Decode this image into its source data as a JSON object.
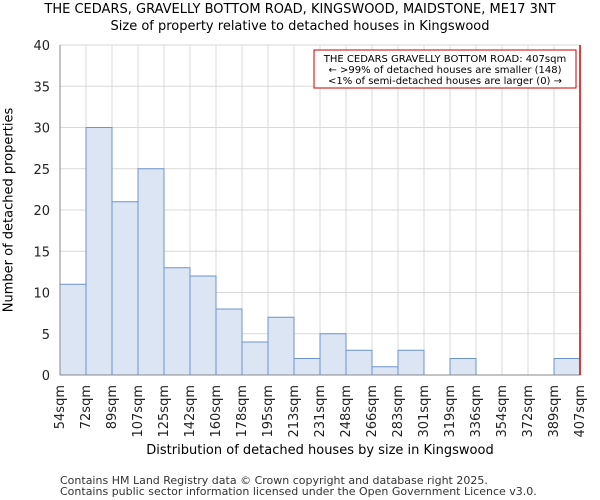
{
  "colors": {
    "bar_fill": "#dbe5f4",
    "bar_stroke": "#6e94cc",
    "grid": "#d9d9d9",
    "marker": "#cc0000"
  },
  "chart_data": {
    "type": "bar",
    "title": "THE CEDARS, GRAVELLY BOTTOM ROAD, KINGSWOOD, MAIDSTONE, ME17 3NT",
    "subtitle": "Size of property relative to detached houses in Kingswood",
    "xlabel": "Distribution of detached houses by size in Kingswood",
    "ylabel": "Number of detached properties",
    "ylim": [
      0,
      40
    ],
    "yticks": [
      0,
      5,
      10,
      15,
      20,
      25,
      30,
      35,
      40
    ],
    "grid": true,
    "bin_edges": [
      "54sqm",
      "72sqm",
      "89sqm",
      "107sqm",
      "125sqm",
      "142sqm",
      "160sqm",
      "178sqm",
      "195sqm",
      "213sqm",
      "231sqm",
      "248sqm",
      "266sqm",
      "283sqm",
      "301sqm",
      "319sqm",
      "336sqm",
      "354sqm",
      "372sqm",
      "389sqm",
      "407sqm"
    ],
    "values": [
      11,
      30,
      21,
      25,
      13,
      12,
      8,
      4,
      7,
      2,
      5,
      3,
      1,
      3,
      0,
      2,
      0,
      0,
      0,
      2
    ],
    "marker": {
      "position_index": 20,
      "label": "407sqm"
    },
    "annotation": [
      "THE CEDARS GRAVELLY BOTTOM ROAD: 407sqm",
      "← >99% of detached houses are smaller (148)",
      "<1% of semi-detached houses are larger (0) →"
    ]
  },
  "footer": {
    "line1": "Contains HM Land Registry data © Crown copyright and database right 2025.",
    "line2": "Contains public sector information licensed under the Open Government Licence v3.0."
  }
}
